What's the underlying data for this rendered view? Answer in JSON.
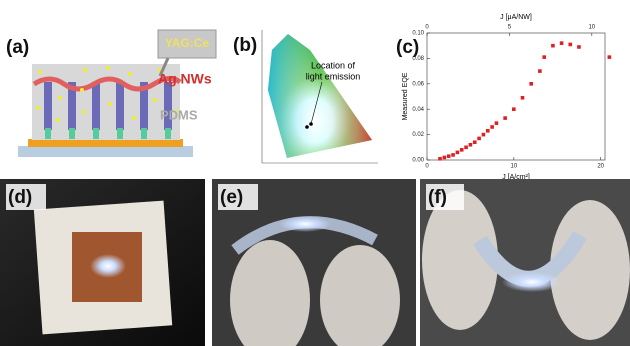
{
  "panels": {
    "a": {
      "label": "(a)",
      "yag": "YAG:Ce",
      "agnw": "Ag NWs",
      "pdms": "PDMS"
    },
    "b": {
      "label": "(b)",
      "annotation": [
        "Location of",
        "light emission"
      ]
    },
    "c": {
      "label": "(c)"
    },
    "d": {
      "label": "(d)"
    },
    "e": {
      "label": "(e)"
    },
    "f": {
      "label": "(f)"
    }
  },
  "chart_data": {
    "type": "scatter",
    "xlabel": "J [A/cm²]",
    "x2label": "J [μA/NW]",
    "ylabel": "Measured EQE",
    "x": [
      1.5,
      2,
      2.5,
      3,
      3.5,
      4,
      4.5,
      5,
      5.5,
      6,
      6.5,
      7,
      7.5,
      8,
      9,
      10,
      11,
      12,
      13,
      13.5,
      14.5,
      15.5,
      16.5,
      17.5,
      21
    ],
    "values": [
      0.001,
      0.002,
      0.003,
      0.004,
      0.006,
      0.008,
      0.01,
      0.012,
      0.014,
      0.017,
      0.02,
      0.023,
      0.026,
      0.029,
      0.033,
      0.04,
      0.049,
      0.06,
      0.07,
      0.081,
      0.09,
      0.092,
      0.091,
      0.089,
      0.081
    ],
    "color": "#e02020",
    "xlim": [
      0,
      20.5
    ],
    "xticks": [
      0,
      10,
      20
    ],
    "x2lim": [
      0,
      10.8
    ],
    "x2ticks": [
      0,
      5,
      10
    ],
    "ylim": [
      0,
      0.1
    ],
    "yticks": [
      {
        "value": 0,
        "label": "0.00"
      },
      {
        "value": 0.02,
        "label": "0.02"
      },
      {
        "value": 0.04,
        "label": "0.04"
      },
      {
        "value": 0.06,
        "label": "0.06"
      },
      {
        "value": 0.08,
        "label": "0.08"
      },
      {
        "value": 0.1,
        "label": "0.10"
      }
    ]
  }
}
